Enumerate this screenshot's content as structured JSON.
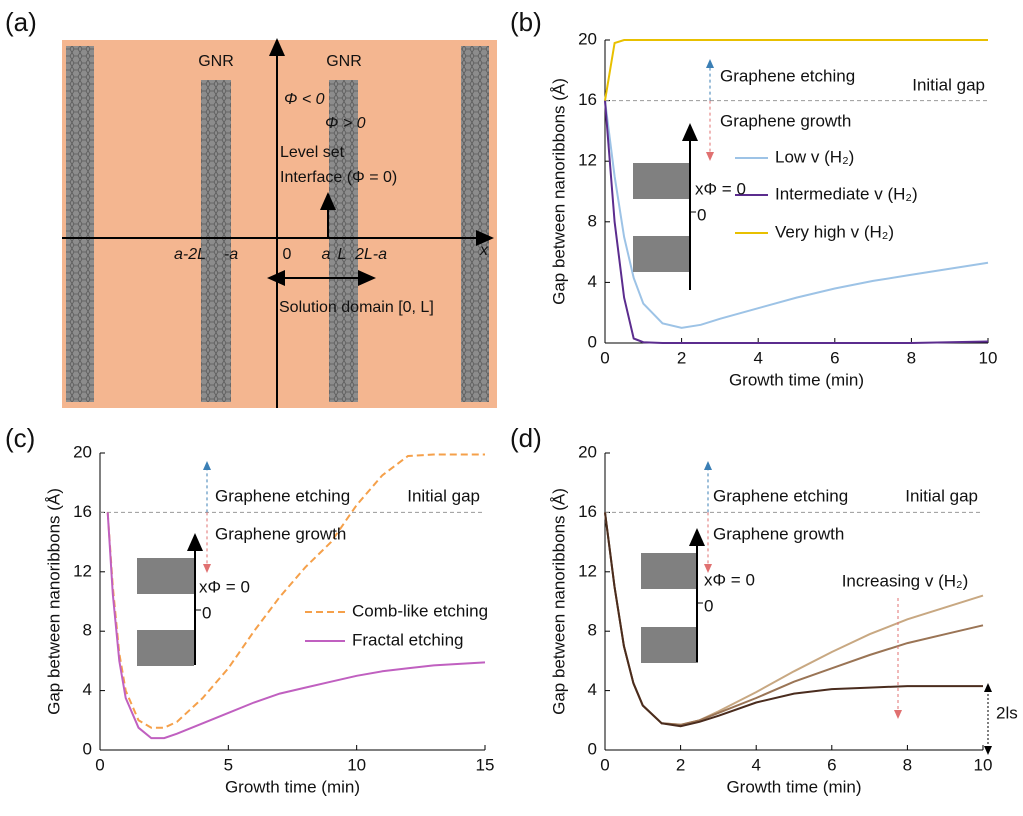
{
  "diagram": {
    "label": "(a)",
    "texts": [
      "GNR",
      "GNR",
      "Φ < 0",
      "Φ > 0",
      "Level set",
      "Interface (Φ = 0)",
      "a-2L",
      "-a",
      "0",
      "a",
      "L",
      "2L-a",
      "x",
      "Solution domain [0, L]"
    ]
  },
  "chart_data": [
    {
      "type": "line",
      "label": "(b)",
      "xlabel": "Growth time (min)",
      "ylabel": "Gap between nanoribbons (Å)",
      "x": [
        0,
        0.25,
        0.5,
        0.75,
        1,
        1.5,
        2,
        2.5,
        3,
        4,
        5,
        6,
        7,
        8,
        9,
        10
      ],
      "series": [
        {
          "name": "Low v (H₂)",
          "color": "#9dc3e6",
          "values": [
            16,
            11,
            7,
            4.3,
            2.6,
            1.3,
            1.0,
            1.2,
            1.6,
            2.3,
            3.0,
            3.6,
            4.1,
            4.5,
            4.9,
            5.3
          ]
        },
        {
          "name": "Intermediate v (H₂)",
          "color": "#5b2c8e",
          "values": [
            16,
            8,
            3,
            0.3,
            0.05,
            0,
            0,
            0,
            0,
            0,
            0,
            0,
            0,
            0,
            0.05,
            0.1
          ]
        },
        {
          "name": "Very high v (H₂)",
          "color": "#e8c000",
          "values": [
            16,
            19.8,
            20,
            20,
            20,
            20,
            20,
            20,
            20,
            20,
            20,
            20,
            20,
            20,
            20,
            20
          ]
        }
      ],
      "initial_gap": 16,
      "annotations": [
        "Graphene etching",
        "Graphene growth",
        "Initial gap"
      ],
      "inset_labels": [
        "xΦ = 0",
        "0"
      ],
      "xlim": [
        0,
        10
      ],
      "ylim": [
        0,
        20
      ],
      "xticks": [
        0,
        2,
        4,
        6,
        8,
        10
      ],
      "yticks": [
        0,
        4,
        8,
        12,
        16,
        20
      ]
    },
    {
      "type": "line",
      "label": "(c)",
      "xlabel": "Growth time (min)",
      "ylabel": "Gap between nanoribbons (Å)",
      "x": [
        0.3,
        0.5,
        0.75,
        1,
        1.5,
        2,
        2.5,
        3,
        4,
        5,
        6,
        7,
        8,
        9,
        10,
        11,
        12,
        13,
        14,
        15
      ],
      "series": [
        {
          "name": "Comb-like etching",
          "color": "#f5a04a",
          "dashed": true,
          "values": [
            16,
            11,
            6.5,
            4,
            2,
            1.5,
            1.5,
            1.9,
            3.5,
            5.5,
            8,
            10.3,
            12.3,
            14,
            16.5,
            18.5,
            19.8,
            19.9,
            19.9,
            19.9
          ]
        },
        {
          "name": "Fractal etching",
          "color": "#c060c0",
          "values": [
            16,
            10.5,
            6,
            3.5,
            1.5,
            0.8,
            0.8,
            1.1,
            1.8,
            2.5,
            3.2,
            3.8,
            4.2,
            4.6,
            5,
            5.3,
            5.5,
            5.7,
            5.8,
            5.9
          ]
        }
      ],
      "initial_gap": 16,
      "annotations": [
        "Graphene etching",
        "Graphene growth",
        "Initial gap"
      ],
      "inset_labels": [
        "xΦ = 0",
        "0"
      ],
      "xlim": [
        0,
        15
      ],
      "ylim": [
        0,
        20
      ],
      "xticks": [
        0,
        5,
        10,
        15
      ],
      "yticks": [
        0,
        4,
        8,
        12,
        16,
        20
      ]
    },
    {
      "type": "line",
      "label": "(d)",
      "xlabel": "Growth time (min)",
      "ylabel": "Gap between nanoribbons (Å)",
      "x": [
        0,
        0.25,
        0.5,
        0.75,
        1,
        1.5,
        2,
        2.5,
        3,
        4,
        5,
        6,
        7,
        8,
        9,
        10
      ],
      "series": [
        {
          "color": "#c8a882",
          "values": [
            16,
            11,
            7,
            4.5,
            3,
            1.8,
            1.7,
            2,
            2.6,
            3.9,
            5.3,
            6.6,
            7.8,
            8.8,
            9.6,
            10.4
          ]
        },
        {
          "color": "#9a7455",
          "values": [
            16,
            11,
            7,
            4.5,
            3,
            1.8,
            1.7,
            2,
            2.5,
            3.5,
            4.6,
            5.5,
            6.4,
            7.2,
            7.8,
            8.4
          ]
        },
        {
          "color": "#4a2c1e",
          "values": [
            16,
            11,
            7,
            4.5,
            3,
            1.8,
            1.6,
            1.9,
            2.3,
            3.2,
            3.8,
            4.1,
            4.2,
            4.3,
            4.3,
            4.3
          ]
        }
      ],
      "initial_gap": 16,
      "annotations": [
        "Graphene etching",
        "Graphene growth",
        "Initial gap",
        "Increasing v (H₂)",
        "2ls"
      ],
      "inset_labels": [
        "xΦ = 0",
        "0"
      ],
      "xlim": [
        0,
        10
      ],
      "ylim": [
        0,
        20
      ],
      "xticks": [
        0,
        2,
        4,
        6,
        8,
        10
      ],
      "yticks": [
        0,
        4,
        8,
        12,
        16,
        20
      ]
    }
  ]
}
